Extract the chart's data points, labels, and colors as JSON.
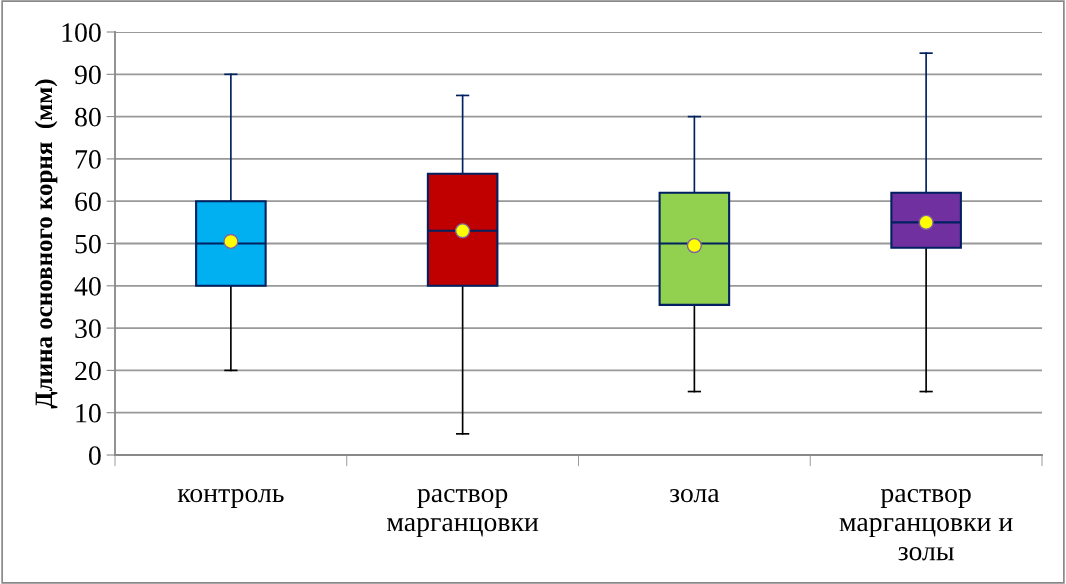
{
  "chart_data": {
    "type": "box",
    "ylabel": "Длина основного корня  (мм)",
    "categories": [
      "контроль",
      "раствор\nмарганцовки",
      "зола",
      "раствор\nмарганцовки и\nзолы"
    ],
    "colors": [
      "#00b0f0",
      "#c00000",
      "#92d050",
      "#7030a0"
    ],
    "boxes": [
      {
        "low": 20,
        "q1": 40,
        "median": 50,
        "q3": 60,
        "high": 90,
        "mean": 50.5
      },
      {
        "low": 5,
        "q1": 40,
        "median": 53,
        "q3": 66.5,
        "high": 85,
        "mean": 53
      },
      {
        "low": 15,
        "q1": 35.5,
        "median": 50,
        "q3": 62,
        "high": 80,
        "mean": 49.5
      },
      {
        "low": 15,
        "q1": 49,
        "median": 55,
        "q3": 62,
        "high": 95,
        "mean": 55
      }
    ],
    "ylim": [
      0,
      100
    ],
    "yticks": [
      0,
      10,
      20,
      30,
      40,
      50,
      60,
      70,
      80,
      90,
      100
    ],
    "grid": "y",
    "marker": "circle"
  }
}
